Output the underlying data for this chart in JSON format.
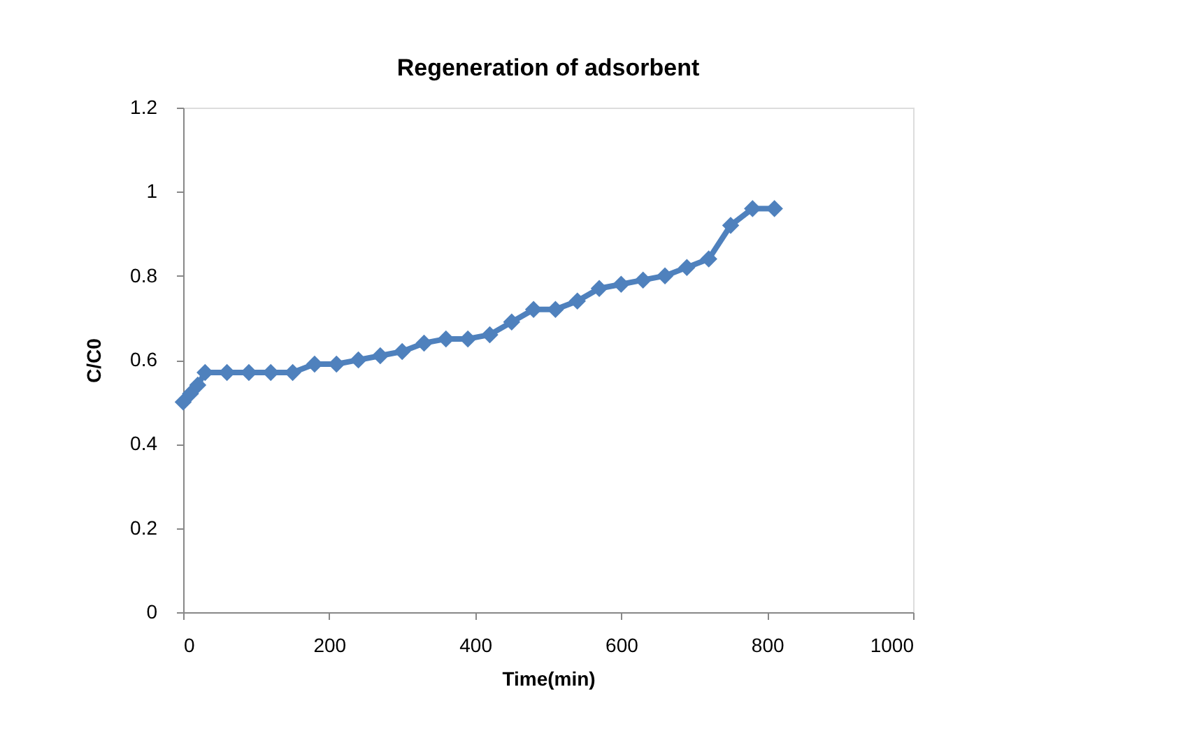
{
  "chart_data": {
    "type": "line",
    "title": "Regeneration of adsorbent",
    "xlabel": "Time(min)",
    "ylabel": "C/C0",
    "x": [
      0,
      10,
      20,
      30,
      60,
      90,
      120,
      150,
      180,
      210,
      240,
      270,
      300,
      330,
      360,
      390,
      420,
      450,
      480,
      510,
      540,
      570,
      600,
      630,
      660,
      690,
      720,
      750,
      780,
      810
    ],
    "series": [
      {
        "color": "#4f81bd",
        "values": [
          0.5,
          0.52,
          0.54,
          0.57,
          0.57,
          0.57,
          0.57,
          0.57,
          0.59,
          0.59,
          0.6,
          0.61,
          0.62,
          0.64,
          0.65,
          0.65,
          0.66,
          0.69,
          0.72,
          0.72,
          0.74,
          0.77,
          0.78,
          0.79,
          0.8,
          0.82,
          0.84,
          0.92,
          0.96,
          0.96
        ]
      }
    ],
    "xlim": [
      0,
      1000
    ],
    "xticks": [
      0,
      200,
      400,
      600,
      800,
      1000
    ],
    "ylim": [
      0,
      1.2
    ],
    "yticks": [
      0,
      0.2,
      0.4,
      0.6,
      0.8,
      1,
      1.2
    ],
    "grid": false,
    "legend": false,
    "marker": "diamond",
    "line_style": "solid"
  }
}
